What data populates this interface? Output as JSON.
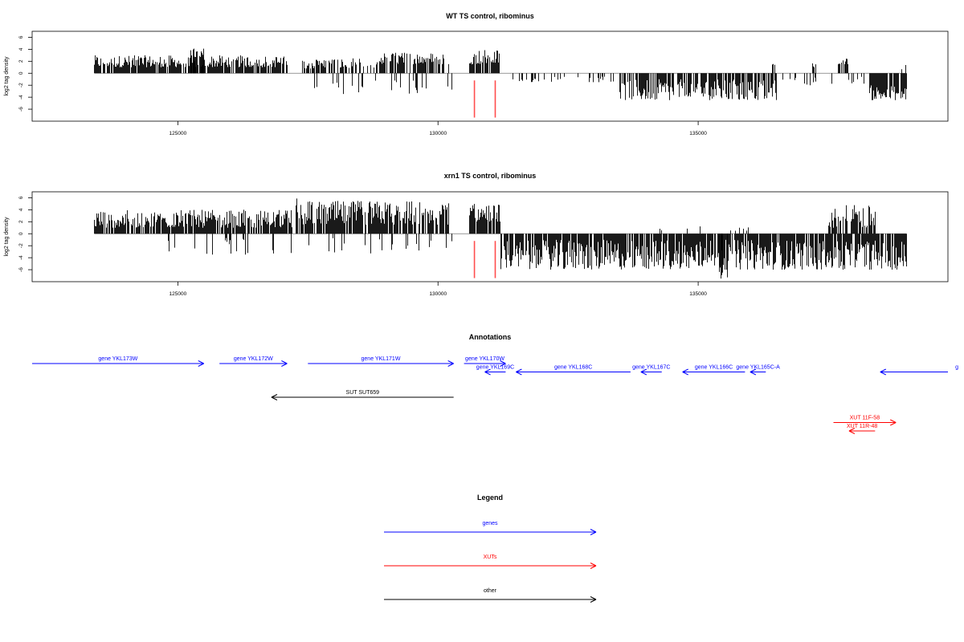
{
  "figure": {
    "colors": {
      "density": "#000000",
      "marker": "#ff4d4d",
      "genes": "#0000ff",
      "xuts": "#ff0000",
      "other": "#000000",
      "axis": "#000000"
    }
  },
  "chart_data": [
    {
      "type": "bar",
      "title": "WT TS control, ribominus",
      "xlabel": "",
      "ylabel": "log2 tag density",
      "xlim": [
        122200,
        139800
      ],
      "ylim": [
        -8,
        7
      ],
      "x_ticks": [
        125000,
        130000,
        135000
      ],
      "y_ticks": [
        -6,
        -4,
        -2,
        0,
        2,
        4,
        6
      ],
      "baseline_range": [
        123400,
        139000
      ],
      "markers": [
        130700,
        131100
      ],
      "bar_regions": [
        {
          "start": 123400,
          "end": 127100,
          "min": 1.0,
          "max": 3.0,
          "density": 0.82
        },
        {
          "start": 125200,
          "end": 125500,
          "min": 2.5,
          "max": 4.2,
          "density": 0.6
        },
        {
          "start": 127400,
          "end": 128900,
          "min": 0.8,
          "max": 2.5,
          "density": 0.6
        },
        {
          "start": 128900,
          "end": 130200,
          "min": 1.5,
          "max": 3.5,
          "density": 0.6
        },
        {
          "start": 130600,
          "end": 131200,
          "min": 1.5,
          "max": 4.0,
          "density": 0.8
        },
        {
          "start": 136400,
          "end": 136500,
          "min": 1.0,
          "max": 1.8,
          "density": 0.5
        },
        {
          "start": 137200,
          "end": 137300,
          "min": 1.0,
          "max": 1.7,
          "density": 0.5
        },
        {
          "start": 137700,
          "end": 137900,
          "min": 1.5,
          "max": 2.6,
          "density": 0.5
        },
        {
          "start": 138900,
          "end": 139000,
          "min": 0.5,
          "max": 1.5,
          "density": 0.6
        },
        {
          "start": 127600,
          "end": 130400,
          "min": -3.5,
          "max": -1.0,
          "density": 0.12
        },
        {
          "start": 131300,
          "end": 133400,
          "min": -1.5,
          "max": -0.5,
          "density": 0.15
        },
        {
          "start": 133500,
          "end": 136500,
          "min": -4.5,
          "max": -1.0,
          "density": 0.75
        },
        {
          "start": 136600,
          "end": 138200,
          "min": -2.0,
          "max": -0.5,
          "density": 0.12
        },
        {
          "start": 138300,
          "end": 139000,
          "min": -4.5,
          "max": -2.0,
          "density": 0.9
        }
      ]
    },
    {
      "type": "bar",
      "title": "xrn1 TS control, ribominus",
      "xlabel": "",
      "ylabel": "log2 tag density",
      "xlim": [
        122200,
        139800
      ],
      "ylim": [
        -8,
        7
      ],
      "x_ticks": [
        125000,
        130000,
        135000
      ],
      "y_ticks": [
        -6,
        -4,
        -2,
        0,
        2,
        4,
        6
      ],
      "baseline_range": [
        123400,
        139000
      ],
      "markers": [
        130700,
        131100
      ],
      "bar_regions": [
        {
          "start": 123400,
          "end": 127200,
          "min": 1.0,
          "max": 4.0,
          "density": 0.85
        },
        {
          "start": 127200,
          "end": 127300,
          "min": 4.0,
          "max": 6.2,
          "density": 0.5
        },
        {
          "start": 127300,
          "end": 130200,
          "min": 1.5,
          "max": 5.5,
          "density": 0.85
        },
        {
          "start": 130600,
          "end": 131200,
          "min": 2.0,
          "max": 5.0,
          "density": 0.9
        },
        {
          "start": 134000,
          "end": 136000,
          "min": 0.5,
          "max": 1.5,
          "density": 0.1
        },
        {
          "start": 137500,
          "end": 138400,
          "min": 1.0,
          "max": 4.8,
          "density": 0.65
        },
        {
          "start": 124800,
          "end": 130300,
          "min": -3.5,
          "max": -0.5,
          "density": 0.12
        },
        {
          "start": 131200,
          "end": 139000,
          "min": -6.0,
          "max": -1.0,
          "density": 0.88
        },
        {
          "start": 135400,
          "end": 135600,
          "min": -7.5,
          "max": -5.0,
          "density": 0.3
        }
      ]
    }
  ],
  "annotations": {
    "title": "Annotations",
    "xlim": [
      122200,
      139800
    ],
    "items": [
      {
        "label": "gene YKL173W",
        "kind": "genes",
        "dir": "right",
        "start": 122200,
        "end": 125500,
        "row": 0
      },
      {
        "label": "gene YKL172W",
        "kind": "genes",
        "dir": "right",
        "start": 125800,
        "end": 127100,
        "row": 0
      },
      {
        "label": "gene YKL171W",
        "kind": "genes",
        "dir": "right",
        "start": 127500,
        "end": 130300,
        "row": 0
      },
      {
        "label": "gene YKL170W",
        "kind": "genes",
        "dir": "right",
        "start": 130500,
        "end": 131300,
        "row": 0
      },
      {
        "label": "gene YKL169C",
        "kind": "genes",
        "dir": "left",
        "start": 130900,
        "end": 131300,
        "row": 1
      },
      {
        "label": "gene YKL168C",
        "kind": "genes",
        "dir": "left",
        "start": 131500,
        "end": 133700,
        "row": 1
      },
      {
        "label": "gene YKL167C",
        "kind": "genes",
        "dir": "left",
        "start": 133900,
        "end": 134300,
        "row": 1
      },
      {
        "label": "gene YKL166C",
        "kind": "genes",
        "dir": "left",
        "start": 134700,
        "end": 135900,
        "row": 1
      },
      {
        "label": "gene YKL165C-A",
        "kind": "genes",
        "dir": "left",
        "start": 136000,
        "end": 136300,
        "row": 1
      },
      {
        "label": "SUT SUT659",
        "kind": "other",
        "dir": "left",
        "start": 126800,
        "end": 130300,
        "row": 4
      },
      {
        "label": "XUT 11F-58",
        "kind": "xuts",
        "dir": "right",
        "start": 137600,
        "end": 138800,
        "row": 7
      },
      {
        "label": "XUT 11R-48",
        "kind": "xuts",
        "dir": "left",
        "start": 137900,
        "end": 138400,
        "row": 8
      }
    ],
    "partial_item": {
      "label": "g",
      "kind": "genes",
      "dir": "left",
      "start": 138500,
      "end": 139800,
      "row": 1
    }
  },
  "legend": {
    "title": "Legend",
    "items": [
      {
        "label": "genes",
        "kind": "genes"
      },
      {
        "label": "XUTs",
        "kind": "xuts"
      },
      {
        "label": "other",
        "kind": "other"
      }
    ]
  }
}
